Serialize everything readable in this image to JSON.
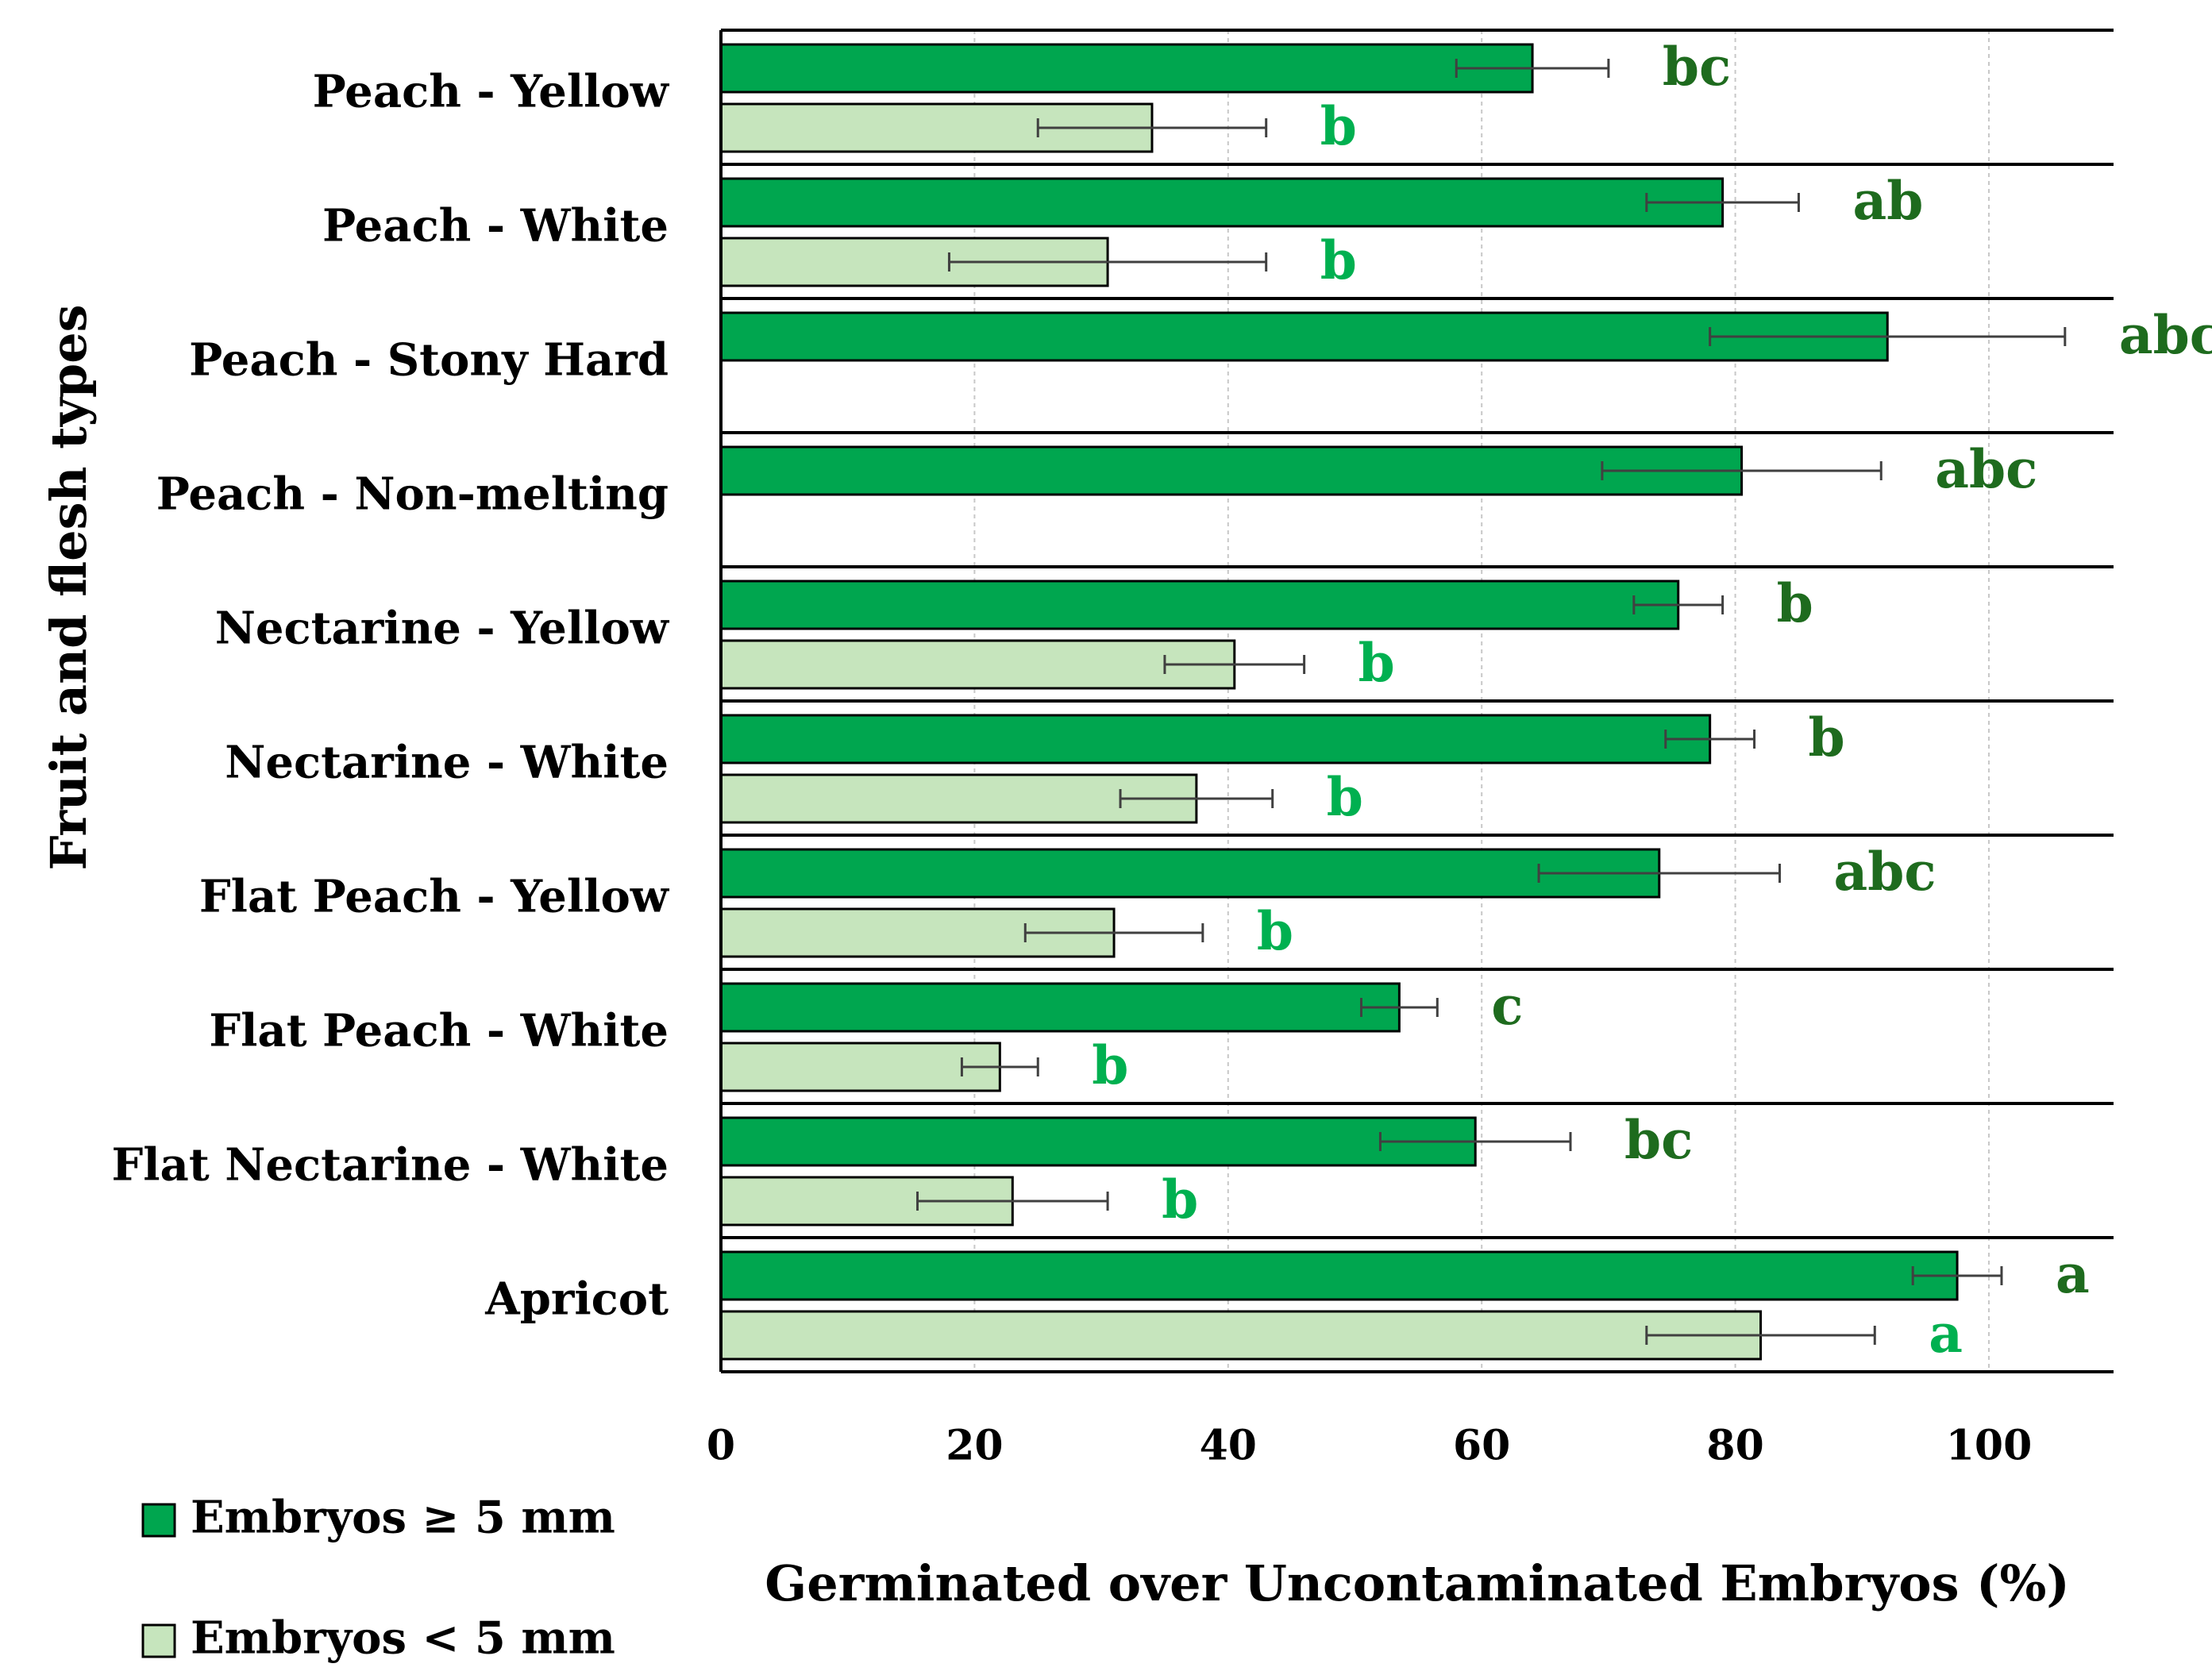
{
  "chart_data": {
    "type": "bar",
    "orientation": "horizontal",
    "xlabel": "Germinated over Uncontaminated Embryos (%)",
    "ylabel": "Fruit and flesh types",
    "xlim": [
      0,
      110
    ],
    "xticks": [
      0,
      20,
      40,
      60,
      80,
      100
    ],
    "grid": "vertical dashed",
    "legend_position": "bottom-left",
    "categories": [
      "Peach - Yellow",
      "Peach - White",
      "Peach - Stony Hard",
      "Peach - Non-melting",
      "Nectarine - Yellow",
      "Nectarine - White",
      "Flat Peach - Yellow",
      "Flat Peach - White",
      "Flat Nectarine - White",
      "Apricot"
    ],
    "series": [
      {
        "name": "Embryos ≥ 5 mm",
        "color": "#00a64f",
        "letter_color": "#1e6b1e",
        "values": [
          64,
          79,
          92,
          80.5,
          75.5,
          78,
          74,
          53.5,
          59.5,
          97.5
        ],
        "errors": [
          6,
          6,
          14,
          11,
          3.5,
          3.5,
          9.5,
          3,
          7.5,
          3.5
        ],
        "letters": [
          "bc",
          "ab",
          "abc",
          "abc",
          "b",
          "b",
          "abc",
          "c",
          "bc",
          "a"
        ]
      },
      {
        "name": "Embryos < 5 mm",
        "color": "#c6e5bd",
        "letter_color": "#00b050",
        "values": [
          34,
          30.5,
          null,
          null,
          40.5,
          37.5,
          31,
          22,
          23,
          82
        ],
        "errors": [
          9,
          12.5,
          null,
          null,
          5.5,
          6,
          7,
          3,
          7.5,
          9
        ],
        "letters": [
          "b",
          "b",
          "",
          "",
          "b",
          "b",
          "b",
          "b",
          "b",
          "a"
        ]
      }
    ]
  }
}
